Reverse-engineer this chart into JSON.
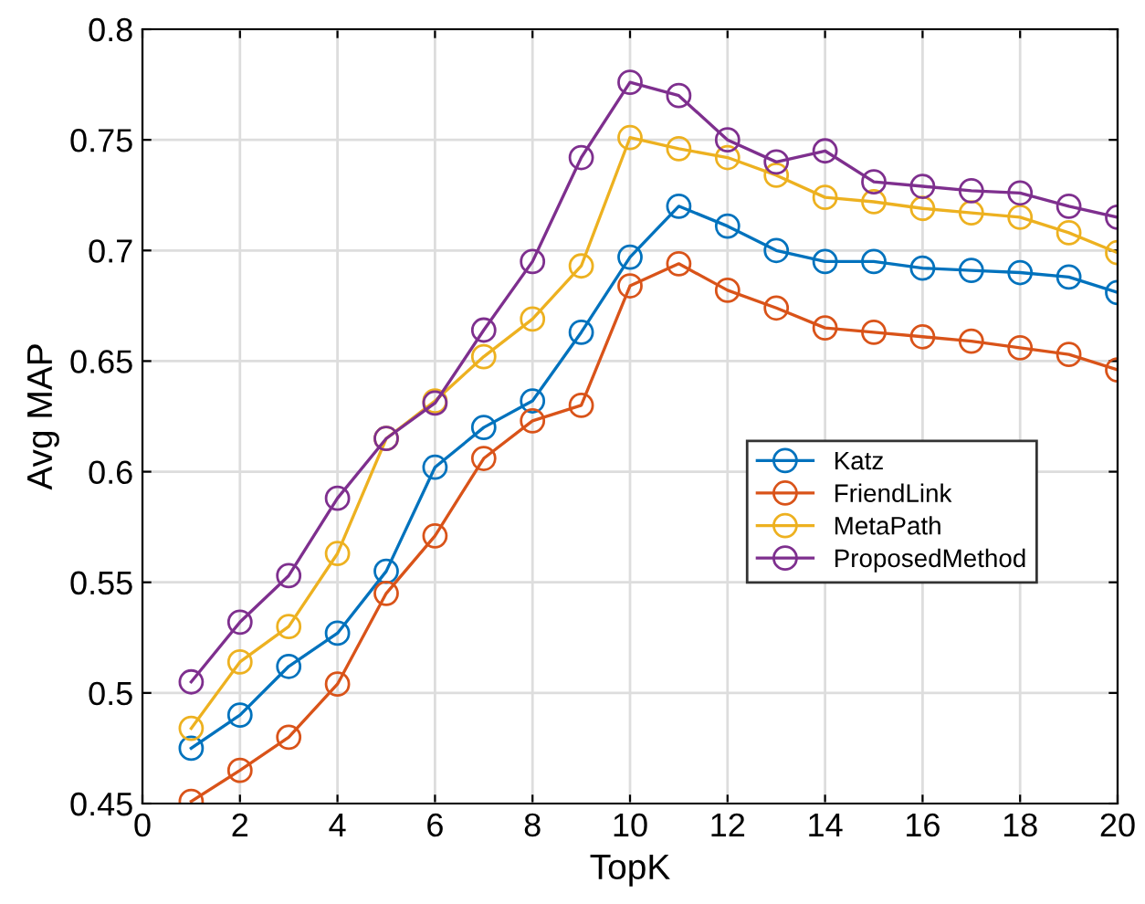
{
  "chart_data": {
    "type": "line",
    "xlabel": "TopK",
    "ylabel": "Avg MAP",
    "x": [
      1,
      2,
      3,
      4,
      5,
      6,
      7,
      8,
      9,
      10,
      11,
      12,
      13,
      14,
      15,
      16,
      17,
      18,
      19,
      20
    ],
    "series": [
      {
        "name": "Katz",
        "color": "#0072bd",
        "values": [
          0.475,
          0.49,
          0.512,
          0.527,
          0.555,
          0.602,
          0.62,
          0.632,
          0.663,
          0.697,
          0.72,
          0.711,
          0.7,
          0.695,
          0.695,
          0.692,
          0.691,
          0.69,
          0.688,
          0.681
        ]
      },
      {
        "name": "FriendLink",
        "color": "#d95319",
        "values": [
          0.451,
          0.465,
          0.48,
          0.504,
          0.545,
          0.571,
          0.606,
          0.623,
          0.63,
          0.684,
          0.694,
          0.682,
          0.674,
          0.665,
          0.663,
          0.661,
          0.659,
          0.656,
          0.653,
          0.646
        ]
      },
      {
        "name": "MetaPath",
        "color": "#edb120",
        "values": [
          0.484,
          0.514,
          0.53,
          0.563,
          0.615,
          0.632,
          0.652,
          0.669,
          0.693,
          0.751,
          0.746,
          0.742,
          0.734,
          0.724,
          0.722,
          0.719,
          0.717,
          0.715,
          0.708,
          0.699
        ]
      },
      {
        "name": "ProposedMethod",
        "color": "#7e2f8e",
        "values": [
          0.505,
          0.532,
          0.553,
          0.588,
          0.615,
          0.631,
          0.664,
          0.695,
          0.742,
          0.776,
          0.77,
          0.75,
          0.74,
          0.745,
          0.731,
          0.729,
          0.727,
          0.726,
          0.72,
          0.715
        ]
      }
    ],
    "xlim": [
      0,
      20
    ],
    "xticks": [
      0,
      2,
      4,
      6,
      8,
      10,
      12,
      14,
      16,
      18,
      20
    ],
    "ylim": [
      0.45,
      0.8
    ],
    "yticks": [
      0.45,
      0.5,
      0.55,
      0.6,
      0.65,
      0.7,
      0.75,
      0.8
    ],
    "grid": true,
    "legend": "center right",
    "marker": "circle",
    "line_style": "solid"
  }
}
